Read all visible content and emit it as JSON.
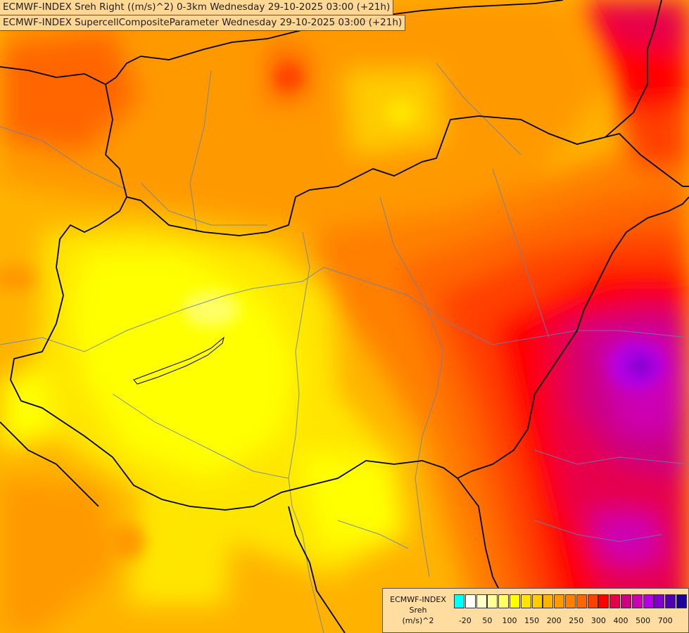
{
  "titles": {
    "line1": "ECMWF-INDEX Sreh Right ((m/s)^2) 0-3km Wednesday 29-10-2025 03:00 (+21h)",
    "line2": "ECMWF-INDEX SupercellCompositeParameter Wednesday 29-10-2025 03:00 (+21h)"
  },
  "legend": {
    "model": "ECMWF-INDEX",
    "param": "Sreh",
    "unit": "(m/s)^2",
    "colors": [
      "#00ffff",
      "#ffffff",
      "#ffffcc",
      "#ffff99",
      "#ffff66",
      "#ffff00",
      "#ffe600",
      "#ffcc00",
      "#ffb300",
      "#ff9900",
      "#ff8000",
      "#ff6600",
      "#ff4000",
      "#ff0000",
      "#e6004c",
      "#cc0080",
      "#cc00b3",
      "#b300e6",
      "#8000cc",
      "#4d00b3",
      "#1a0099"
    ],
    "labels": [
      "-20",
      "50",
      "100",
      "150",
      "200",
      "250",
      "300",
      "400",
      "500",
      "700"
    ]
  }
}
